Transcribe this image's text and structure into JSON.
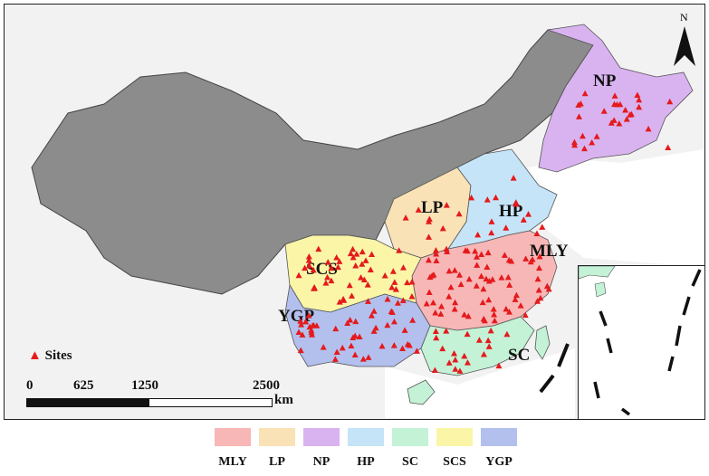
{
  "regions": {
    "NP": {
      "label": "NP",
      "color": "#d9b3f0"
    },
    "LP": {
      "label": "LP",
      "color": "#f9e2b5"
    },
    "HP": {
      "label": "HP",
      "color": "#c6e4f7"
    },
    "MLY": {
      "label": "MLY",
      "color": "#f8b7b7"
    },
    "SCS": {
      "label": "SCS",
      "color": "#fbf5a8"
    },
    "YGP": {
      "label": "YGP",
      "color": "#b3c0ee"
    },
    "SC": {
      "label": "SC",
      "color": "#c3f2d6"
    }
  },
  "legend": [
    {
      "label": "MLY",
      "color": "#f8b7b7"
    },
    {
      "label": "LP",
      "color": "#f9e2b5"
    },
    {
      "label": "NP",
      "color": "#d9b3f0"
    },
    {
      "label": "HP",
      "color": "#c6e4f7"
    },
    {
      "label": "SC",
      "color": "#c3f2d6"
    },
    {
      "label": "SCS",
      "color": "#fbf5a8"
    },
    {
      "label": "YGP",
      "color": "#b3c0ee"
    }
  ],
  "sites_legend": {
    "label": "Sites",
    "color": "#e41a1c"
  },
  "scale_bar": {
    "ticks": [
      "0",
      "625",
      "1250",
      "2500"
    ],
    "unit": "km"
  },
  "north_arrow": {
    "label": "N"
  },
  "colors": {
    "background_land": "#f2f2f2",
    "grey_region": "#8c8c8c",
    "water": "#ffffff"
  }
}
